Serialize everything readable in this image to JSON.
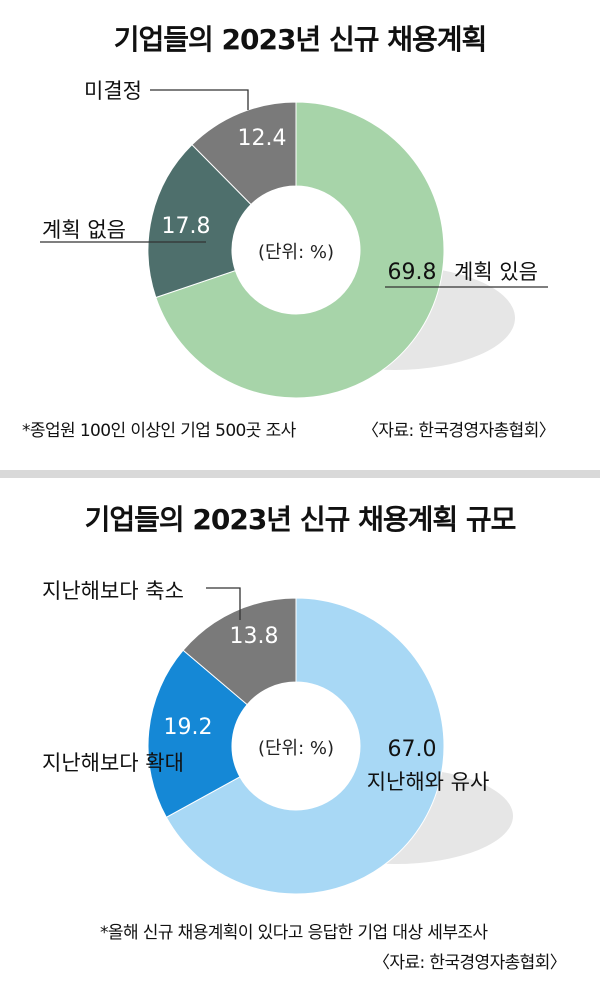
{
  "charts": [
    {
      "title": "기업들의 2023년 신규 채용계획",
      "unit_label": "(단위: %)",
      "footnote": "*종업원 100인 이상인 기업 500곳 조사",
      "source": "〈자료: 한국경영자총협회〉",
      "chart_data": {
        "type": "pie",
        "title": "기업들의 2023년 신규 채용계획",
        "unit": "%",
        "slices": [
          {
            "label": "계획 있음",
            "value": 69.8,
            "value_label": "69.8",
            "color": "#a7d4a9"
          },
          {
            "label": "계획 없음",
            "value": 17.8,
            "value_label": "17.8",
            "color": "#4e6f6c"
          },
          {
            "label": "미결정",
            "value": 12.4,
            "value_label": "12.4",
            "color": "#7a7a7a"
          }
        ]
      }
    },
    {
      "title": "기업들의 2023년 신규 채용계획 규모",
      "unit_label": "(단위: %)",
      "footnote": "*올해 신규 채용계획이 있다고 응답한 기업 대상 세부조사",
      "source": "〈자료: 한국경영자총협회〉",
      "chart_data": {
        "type": "pie",
        "title": "기업들의 2023년 신규 채용계획 규모",
        "unit": "%",
        "slices": [
          {
            "label": "지난해와 유사",
            "value": 67.0,
            "value_label": "67.0",
            "color": "#a8d8f5"
          },
          {
            "label": "지난해보다 확대",
            "value": 19.2,
            "value_label": "19.2",
            "color": "#1588d6"
          },
          {
            "label": "지난해보다 축소",
            "value": 13.8,
            "value_label": "13.8",
            "color": "#7a7a7a"
          }
        ]
      }
    }
  ]
}
